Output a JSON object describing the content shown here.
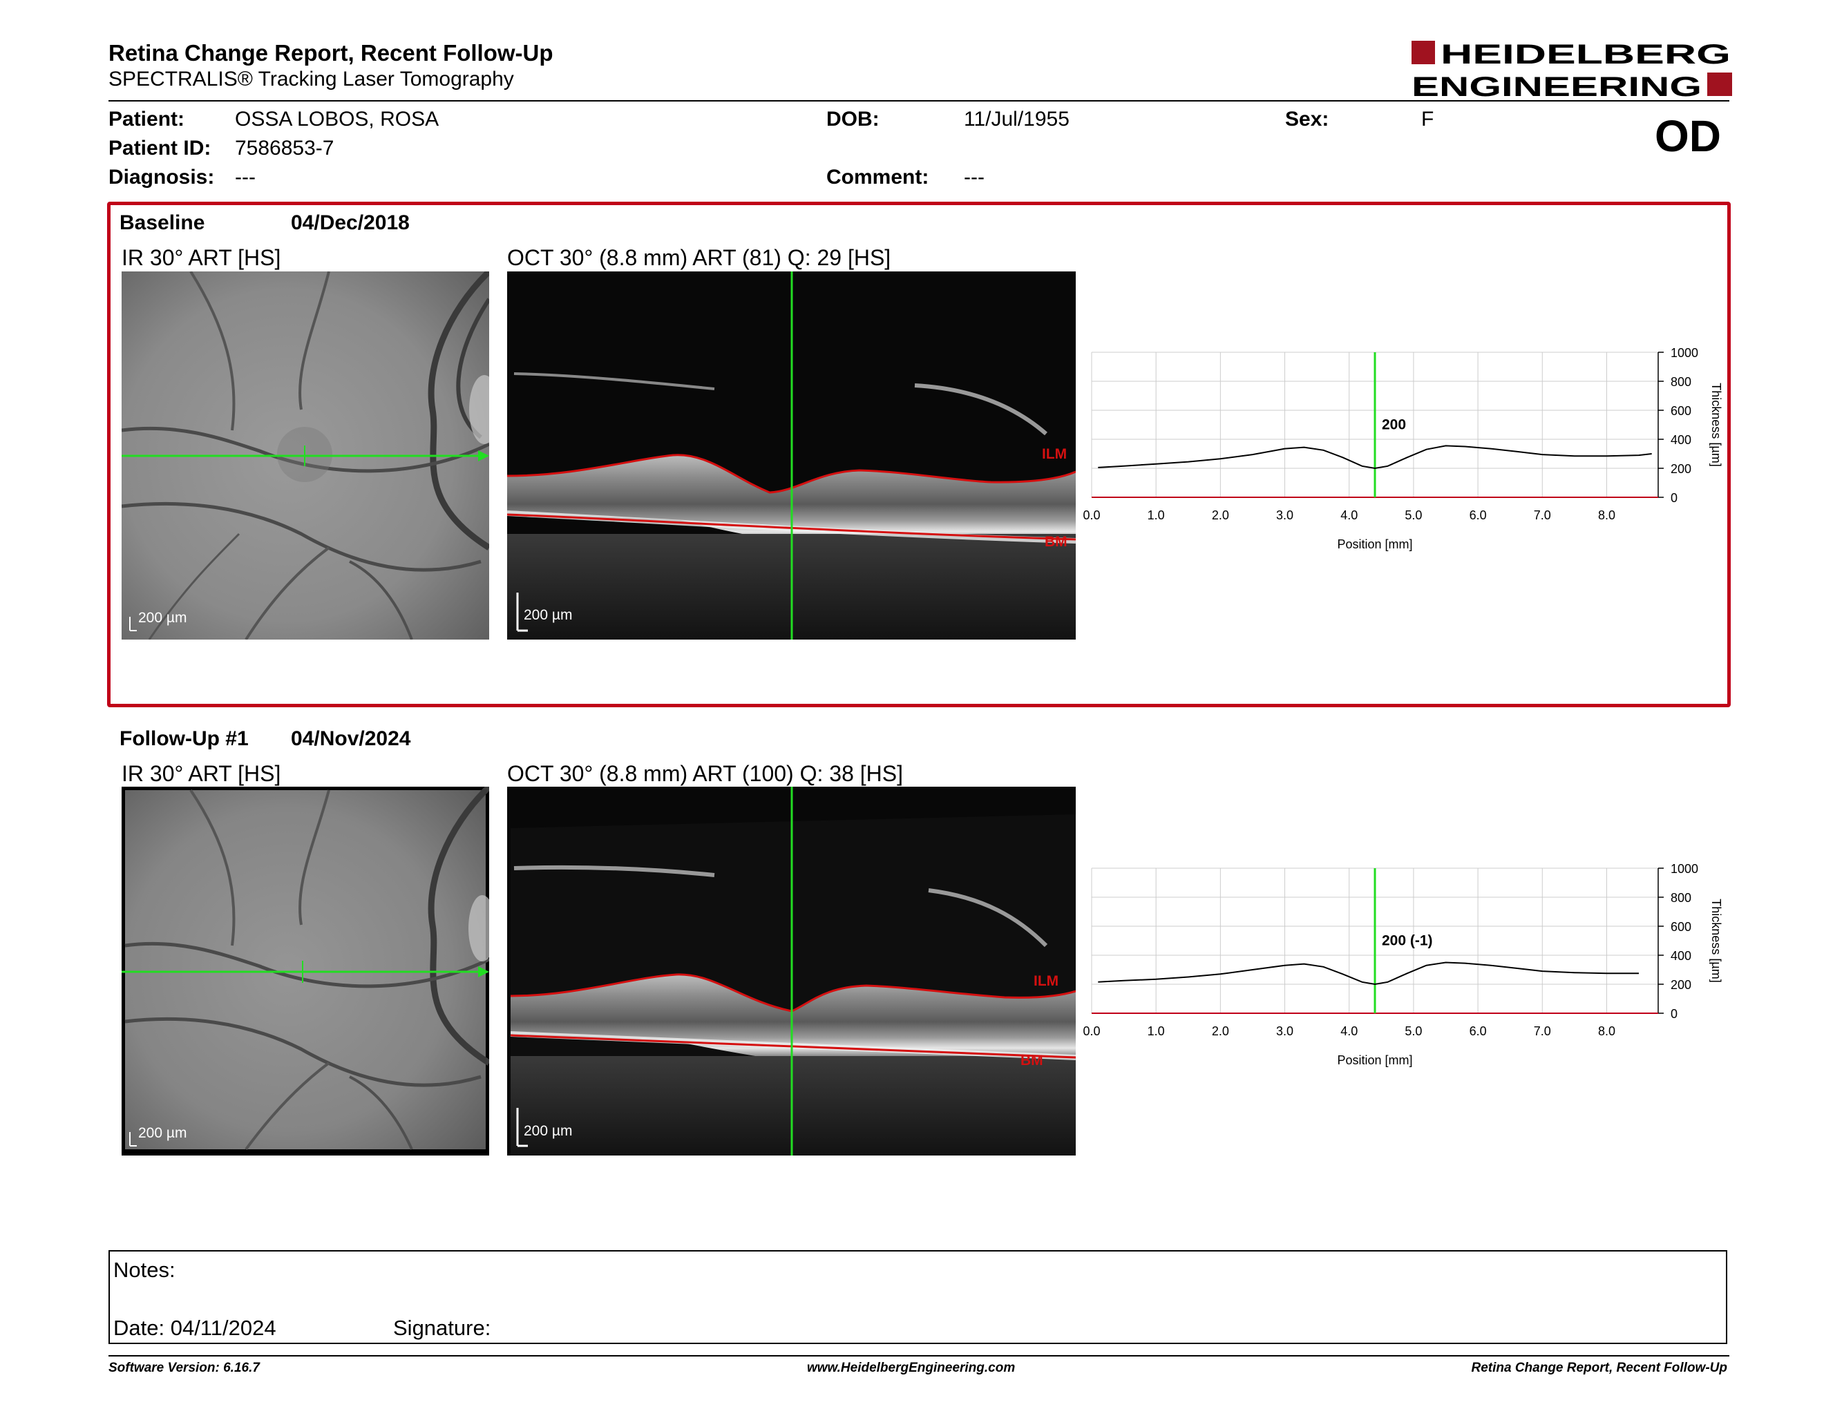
{
  "header": {
    "title": "Retina Change Report, Recent Follow-Up",
    "subtitle": "SPECTRALIS® Tracking Laser Tomography",
    "logo_line1": "HEIDELBERG",
    "logo_line2": "ENGINEERING",
    "eye": "OD"
  },
  "patient": {
    "name_label": "Patient:",
    "name": "OSSA LOBOS, ROSA",
    "id_label": "Patient ID:",
    "id": "7586853-7",
    "diagnosis_label": "Diagnosis:",
    "diagnosis": "---",
    "dob_label": "DOB:",
    "dob": "11/Jul/1955",
    "comment_label": "Comment:",
    "comment": "---",
    "sex_label": "Sex:",
    "sex": "F"
  },
  "baseline": {
    "label": "Baseline",
    "date": "04/Dec/2018",
    "ir_caption": "IR 30° ART [HS]",
    "oct_caption": "OCT 30° (8.8 mm) ART (81) Q: 29 [HS]",
    "scale_ir": "200 µm",
    "scale_oct": "200 µm",
    "ilm_label": "ILM",
    "bm_label": "BM",
    "thickness_value": "200"
  },
  "followup": {
    "label": "Follow-Up #1",
    "date": "04/Nov/2024",
    "ir_caption": "IR 30° ART [HS]",
    "oct_caption": "OCT 30° (8.8 mm) ART (100) Q: 38 [HS]",
    "scale_ir": "200 µm",
    "scale_oct": "200 µm",
    "ilm_label": "ILM",
    "bm_label": "BM",
    "thickness_value": "200 (-1)"
  },
  "chart_data": [
    {
      "type": "line",
      "xlabel": "Position [mm]",
      "ylabel": "Thickness [µm]",
      "xlim": [
        0,
        8.8
      ],
      "ylim": [
        0,
        1000
      ],
      "xticks": [
        "0.0",
        "1.0",
        "2.0",
        "3.0",
        "4.0",
        "5.0",
        "6.0",
        "7.0",
        "8.0"
      ],
      "yticks": [
        "0",
        "200",
        "400",
        "600",
        "800",
        "1000"
      ],
      "grid": true,
      "marker_x": 4.4,
      "marker_label": "200",
      "series": [
        {
          "x": [
            0.1,
            0.5,
            1.0,
            1.5,
            2.0,
            2.5,
            3.0,
            3.3,
            3.6,
            3.9,
            4.2,
            4.4,
            4.6,
            4.9,
            5.2,
            5.5,
            5.8,
            6.2,
            6.6,
            7.0,
            7.5,
            8.0,
            8.5,
            8.7
          ],
          "y": [
            205,
            215,
            230,
            245,
            265,
            295,
            335,
            345,
            325,
            275,
            215,
            200,
            215,
            275,
            330,
            355,
            350,
            335,
            315,
            295,
            285,
            285,
            290,
            300
          ]
        }
      ]
    },
    {
      "type": "line",
      "xlabel": "Position [mm]",
      "ylabel": "Thickness [µm]",
      "xlim": [
        0,
        8.8
      ],
      "ylim": [
        0,
        1000
      ],
      "xticks": [
        "0.0",
        "1.0",
        "2.0",
        "3.0",
        "4.0",
        "5.0",
        "6.0",
        "7.0",
        "8.0"
      ],
      "yticks": [
        "0",
        "200",
        "400",
        "600",
        "800",
        "1000"
      ],
      "grid": true,
      "marker_x": 4.4,
      "marker_label": "200 (-1)",
      "series": [
        {
          "x": [
            0.1,
            0.5,
            1.0,
            1.5,
            2.0,
            2.5,
            3.0,
            3.3,
            3.6,
            3.9,
            4.2,
            4.4,
            4.6,
            4.9,
            5.2,
            5.5,
            5.8,
            6.2,
            6.6,
            7.0,
            7.5,
            8.0,
            8.3,
            8.5
          ],
          "y": [
            215,
            225,
            235,
            250,
            270,
            300,
            330,
            340,
            320,
            270,
            215,
            200,
            215,
            275,
            330,
            350,
            345,
            330,
            310,
            290,
            280,
            275,
            275,
            275
          ]
        }
      ]
    }
  ],
  "notes": {
    "notes_label": "Notes:",
    "date_label": "Date: 04/11/2024",
    "signature_label": "Signature:"
  },
  "footer": {
    "software": "Software Version: 6.16.7",
    "website": "www.HeidelbergEngineering.com",
    "report": "Retina Change Report, Recent Follow-Up"
  },
  "colors": {
    "brand_red": "#c00018",
    "scan_green": "#22dd22",
    "layer_red": "#d41010"
  }
}
